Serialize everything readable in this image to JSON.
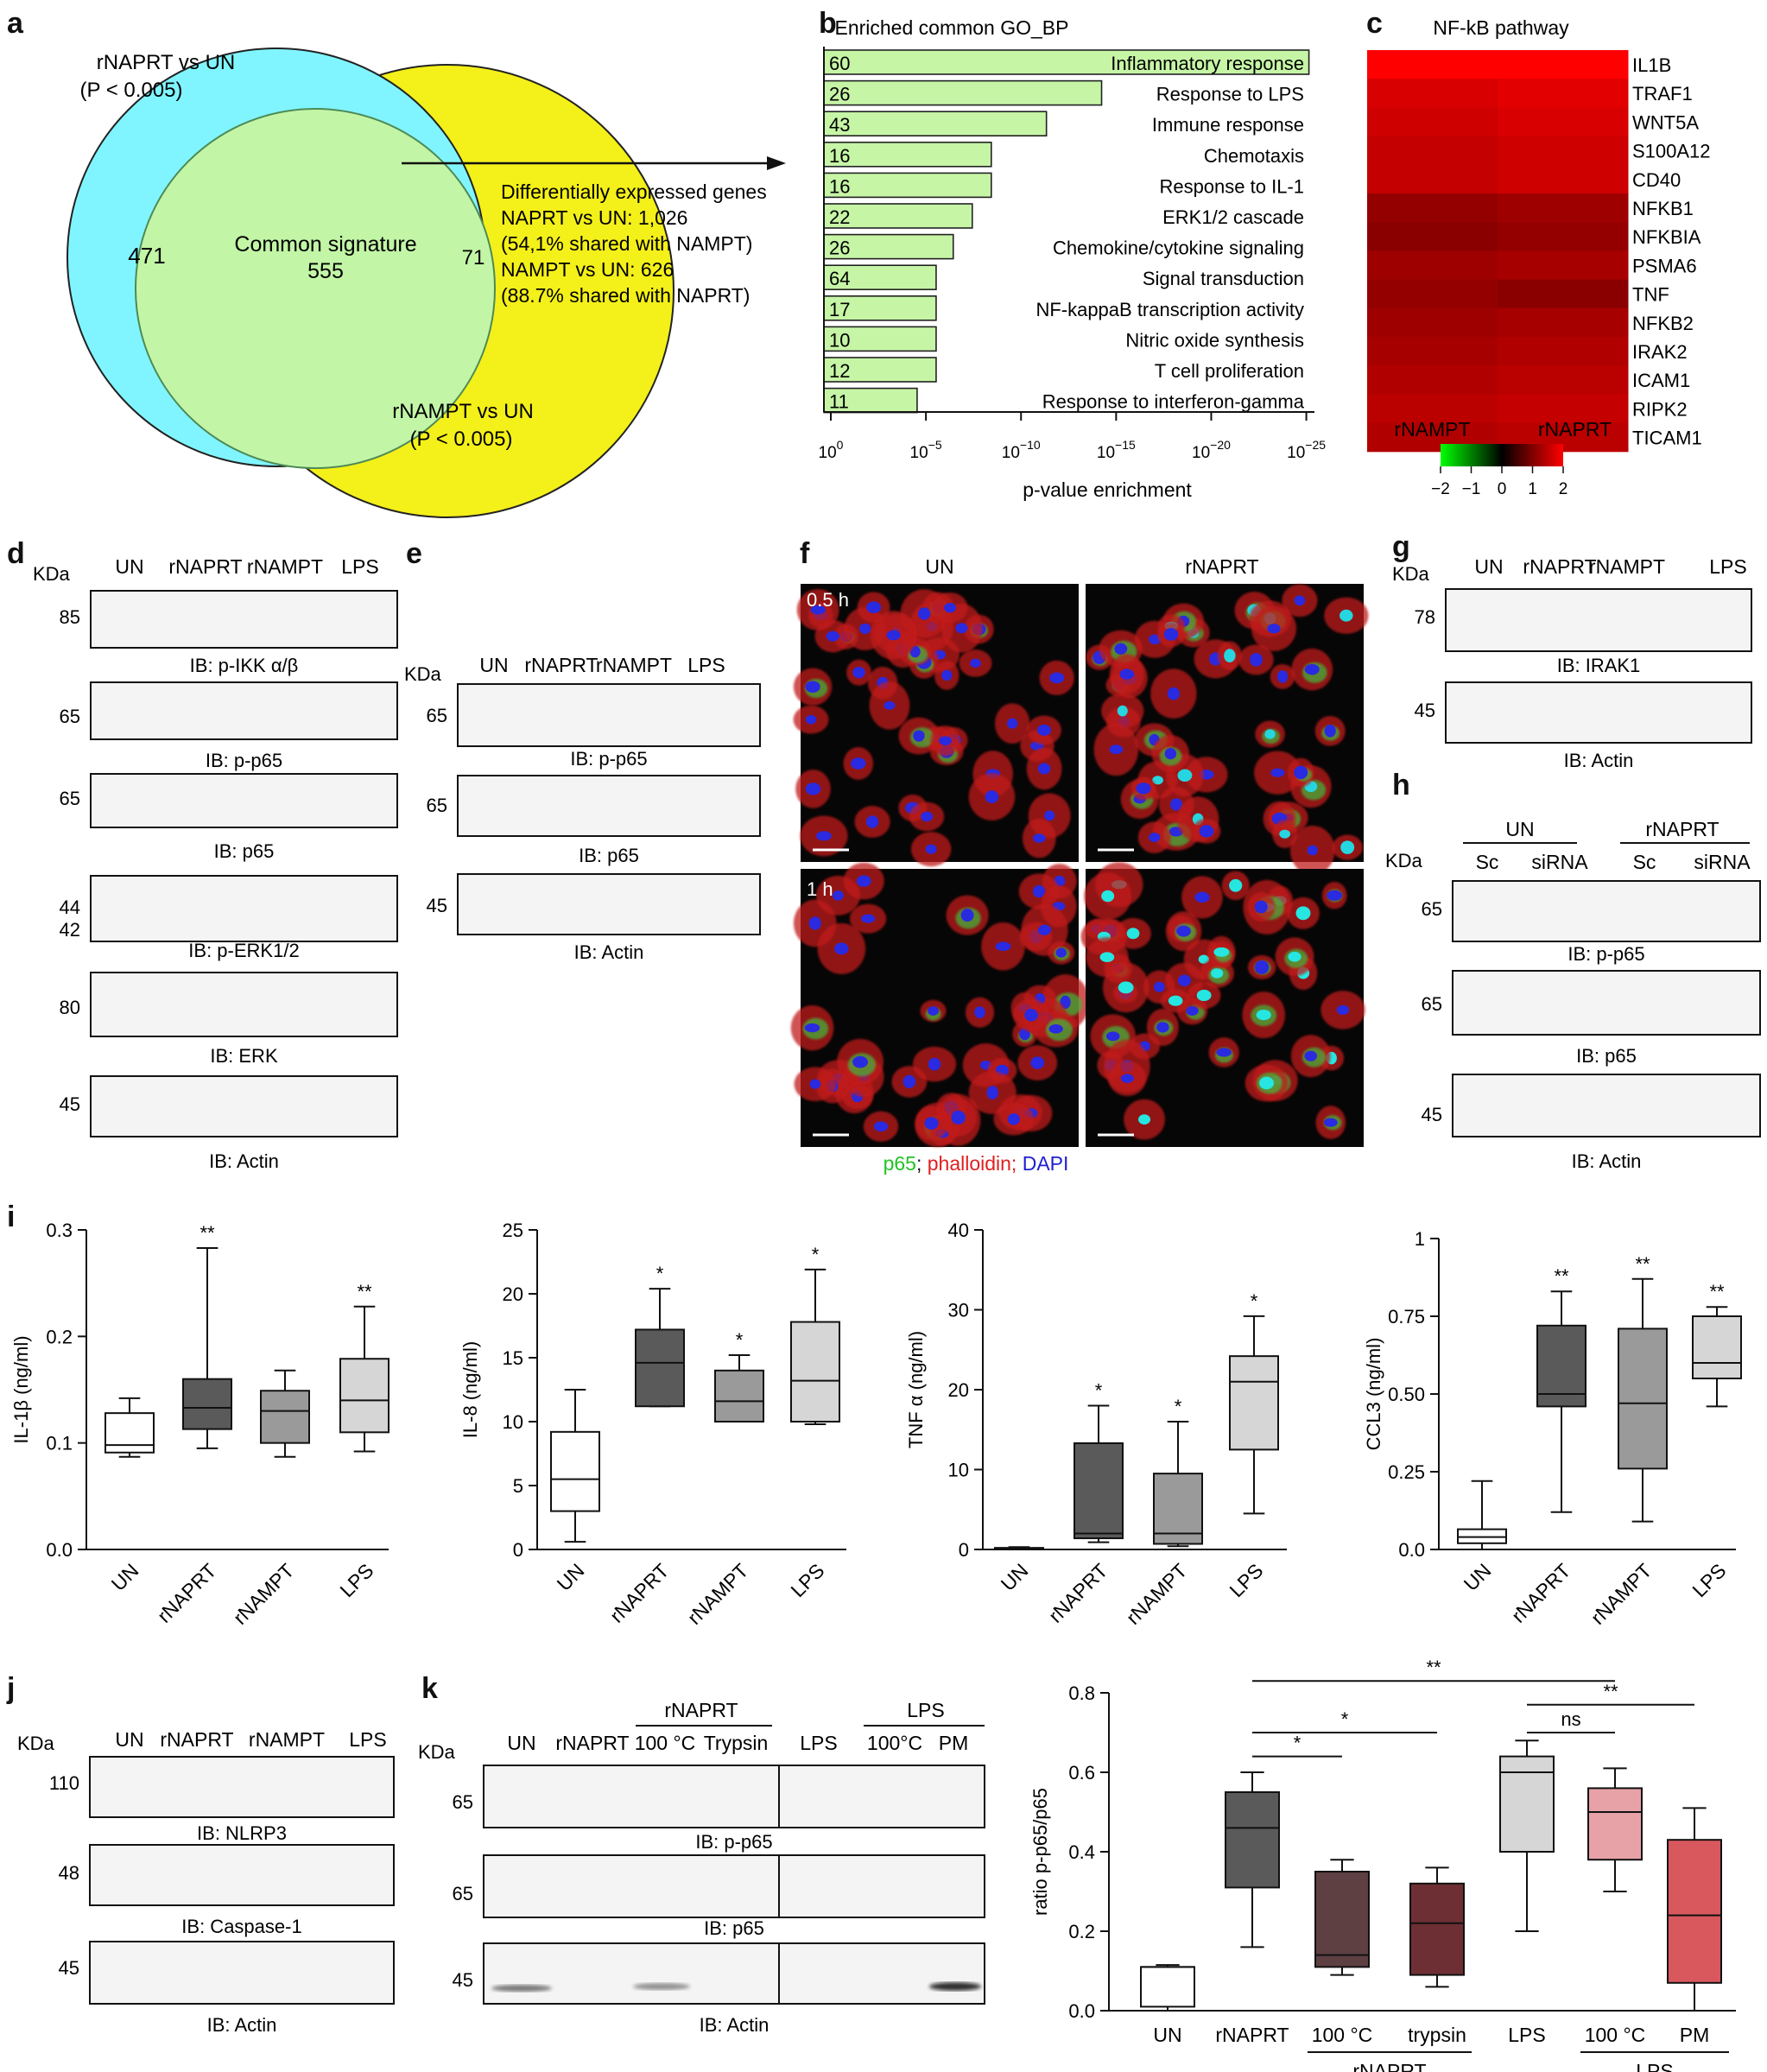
{
  "panel_letters": {
    "a": "a",
    "b": "b",
    "c": "c",
    "d": "d",
    "e": "e",
    "f": "f",
    "g": "g",
    "h": "h",
    "i": "i",
    "j": "j",
    "k": "k"
  },
  "venn": {
    "rnaprt_label": "rNAPRT vs UN",
    "rnaprt_p": "(P < 0.005)",
    "rnampt_label": "rNAMPT vs UN",
    "rnampt_p": "(P < 0.005)",
    "left_only": "471",
    "common_title": "Common signature",
    "common_count": "555",
    "right_only": "71",
    "colors": {
      "rnaprt": "#80f5ff",
      "rnampt": "#f4f019",
      "common": "#c2f5a6"
    },
    "deg_text": [
      "Differentially expressed genes",
      "NAPRT vs UN: 1,026",
      "(54,1% shared with NAMPT)",
      "NAMPT vs UN: 626",
      "(88.7% shared with NAPRT)"
    ]
  },
  "go_chart": {
    "title": "Enriched common GO_BP",
    "xlabel": "p-value enrichment",
    "xticks": [
      "10^0",
      "10^-5",
      "10^-10",
      "10^-15",
      "10^-20",
      "10^-25"
    ],
    "bar_color": "#c6f5a6"
  },
  "heatmap": {
    "title": "NF-kB pathway",
    "columns": [
      "rNAMPT",
      "rNAPRT"
    ],
    "genes": [
      "IL1B",
      "TRAF1",
      "WNT5A",
      "S100A12",
      "CD40",
      "NFKB1",
      "NFKBIA",
      "PSMA6",
      "TNF",
      "NFKB2",
      "IRAK2",
      "ICAM1",
      "RIPK2",
      "TICAM1"
    ],
    "scale_ticks": [
      "−2",
      "−1",
      "0",
      "1",
      "2"
    ]
  },
  "blots": {
    "kda": "KDa",
    "d": {
      "lanes": [
        "UN",
        "rNAPRT",
        "rNAMPT",
        "LPS"
      ],
      "rows": [
        {
          "mw": [
            "85"
          ],
          "label": "IB: p-IKK α/β"
        },
        {
          "mw": [
            "65"
          ],
          "label": "IB: p-p65"
        },
        {
          "mw": [
            "65"
          ],
          "label": "IB: p65"
        },
        {
          "mw": [
            "44",
            "42"
          ],
          "label": "IB: p-ERK1/2"
        },
        {
          "mw": [
            "80"
          ],
          "label": "IB: ERK"
        },
        {
          "mw": [
            "45"
          ],
          "label": "IB: Actin"
        }
      ]
    },
    "e": {
      "lanes": [
        "UN",
        "rNAPRT",
        "rNAMPT",
        "LPS"
      ],
      "rows": [
        {
          "mw": [
            "65"
          ],
          "label": "IB: p-p65"
        },
        {
          "mw": [
            "65"
          ],
          "label": "IB: p65"
        },
        {
          "mw": [
            "45"
          ],
          "label": "IB: Actin"
        }
      ]
    },
    "g": {
      "lanes": [
        "UN",
        "rNAPRT",
        "rNAMPT",
        "LPS"
      ],
      "rows": [
        {
          "mw": [
            "78"
          ],
          "label": "IB: IRAK1"
        },
        {
          "mw": [
            "45"
          ],
          "label": "IB: Actin"
        }
      ]
    },
    "h": {
      "groups": [
        "UN",
        "rNAPRT"
      ],
      "lanes": [
        "Sc",
        "siRNA",
        "Sc",
        "siRNA"
      ],
      "rows": [
        {
          "mw": [
            "65"
          ],
          "label": "IB: p-p65"
        },
        {
          "mw": [
            "65"
          ],
          "label": "IB: p65"
        },
        {
          "mw": [
            "45"
          ],
          "label": "IB: Actin"
        }
      ]
    },
    "j": {
      "lanes": [
        "UN",
        "rNAPRT",
        "rNAMPT",
        "LPS"
      ],
      "rows": [
        {
          "mw": [
            "110"
          ],
          "label": "IB: NLRP3"
        },
        {
          "mw": [
            "48"
          ],
          "label": "IB: Caspase-1"
        },
        {
          "mw": [
            "45"
          ],
          "label": "IB: Actin"
        }
      ]
    },
    "k": {
      "groups": [
        "rNAPRT",
        "LPS"
      ],
      "lanes": [
        "UN",
        "rNAPRT",
        "100 °C",
        "Trypsin",
        "LPS",
        "100°C",
        "PM"
      ],
      "rows": [
        {
          "mw": [
            "65"
          ],
          "label": "IB: p-p65"
        },
        {
          "mw": [
            "65"
          ],
          "label": "IB: p65"
        },
        {
          "mw": [
            "45"
          ],
          "label": "IB: Actin"
        }
      ]
    }
  },
  "micro": {
    "col_labels": [
      "UN",
      "rNAPRT"
    ],
    "time_labels": [
      "0.5 h",
      "1 h"
    ],
    "legend": [
      {
        "text": "p65",
        "color": "#22c322"
      },
      {
        "text": "; ",
        "color": "#111111"
      },
      {
        "text": "phalloidin;",
        "color": "#e02020"
      },
      {
        "text": " DAPI",
        "color": "#2020d0"
      }
    ]
  },
  "box_colors": [
    "#ffffff",
    "#5a5a5a",
    "#9a9a9a",
    "#d6d6d6"
  ],
  "k_colors": [
    "#ffffff",
    "#5a5a5a",
    "#5e3f42",
    "#6e2f34",
    "#d6d6d6",
    "#e7a2a8",
    "#d8585e"
  ],
  "chart_data": [
    {
      "type": "bar",
      "title": "Enriched common GO_BP",
      "xlabel": "p-value enrichment",
      "x_scale": "log",
      "categories": [
        "Inflammatory response",
        "Response to LPS",
        "Immune response",
        "Chemotaxis",
        "Response to IL-1",
        "ERK1/2 cascade",
        "Chemokine/cytokine signaling",
        "Signal transduction",
        "NF-kappaB transcription activity",
        "Nitric oxide synthesis",
        "T cell proliferation",
        "Response to interferon-gamma"
      ],
      "values_exponent": [
        25.5,
        14.6,
        11.7,
        8.8,
        8.8,
        7.8,
        6.8,
        5.9,
        5.9,
        5.9,
        5.9,
        4.9
      ],
      "gene_counts": [
        "60",
        "26",
        "43",
        "16",
        "16",
        "22",
        "26",
        "64",
        "17",
        "10",
        "12",
        "11"
      ]
    },
    {
      "type": "heatmap",
      "title": "NF-kB pathway",
      "columns": [
        "rNAMPT",
        "rNAPRT"
      ],
      "rows": [
        "IL1B",
        "TRAF1",
        "WNT5A",
        "S100A12",
        "CD40",
        "NFKB1",
        "NFKBIA",
        "PSMA6",
        "TNF",
        "NFKB2",
        "IRAK2",
        "ICAM1",
        "RIPK2",
        "TICAM1"
      ],
      "values": [
        [
          2.0,
          2.0
        ],
        [
          1.6,
          1.7
        ],
        [
          1.5,
          1.6
        ],
        [
          1.4,
          1.5
        ],
        [
          1.4,
          1.5
        ],
        [
          0.9,
          1.0
        ],
        [
          0.8,
          0.9
        ],
        [
          1.0,
          1.1
        ],
        [
          0.9,
          0.8
        ],
        [
          1.0,
          1.1
        ],
        [
          1.1,
          1.2
        ],
        [
          1.2,
          1.3
        ],
        [
          1.3,
          1.4
        ],
        [
          1.2,
          1.3
        ]
      ],
      "scale": [
        -2,
        2
      ]
    },
    {
      "type": "box",
      "ylabel": "IL-1β (ng/ml)",
      "ylim": [
        0,
        0.3
      ],
      "yticks": [
        "0.0",
        "0.1",
        "0.2",
        "0.3"
      ],
      "categories": [
        "UN",
        "rNAPRT",
        "rNAMPT",
        "LPS"
      ],
      "boxes": [
        {
          "min": 0.087,
          "q1": 0.091,
          "med": 0.098,
          "q3": 0.128,
          "max": 0.142,
          "sig": ""
        },
        {
          "min": 0.095,
          "q1": 0.113,
          "med": 0.133,
          "q3": 0.16,
          "max": 0.283,
          "sig": "**"
        },
        {
          "min": 0.087,
          "q1": 0.1,
          "med": 0.13,
          "q3": 0.149,
          "max": 0.168,
          "sig": ""
        },
        {
          "min": 0.092,
          "q1": 0.11,
          "med": 0.14,
          "q3": 0.179,
          "max": 0.228,
          "sig": "**"
        }
      ]
    },
    {
      "type": "box",
      "ylabel": "IL-8 (ng/ml)",
      "ylim": [
        0,
        25
      ],
      "yticks": [
        "0",
        "5",
        "10",
        "15",
        "20",
        "25"
      ],
      "categories": [
        "UN",
        "rNAPRT",
        "rNAMPT",
        "LPS"
      ],
      "boxes": [
        {
          "min": 0.6,
          "q1": 3.0,
          "med": 5.5,
          "q3": 9.2,
          "max": 12.5,
          "sig": ""
        },
        {
          "min": 11.2,
          "q1": 11.2,
          "med": 14.6,
          "q3": 17.2,
          "max": 20.4,
          "sig": "*"
        },
        {
          "min": 10.0,
          "q1": 10.0,
          "med": 11.6,
          "q3": 14.0,
          "max": 15.2,
          "sig": "*"
        },
        {
          "min": 9.8,
          "q1": 10.0,
          "med": 13.2,
          "q3": 17.8,
          "max": 21.9,
          "sig": "*"
        }
      ]
    },
    {
      "type": "box",
      "ylabel": "TNF α (ng/ml)",
      "ylim": [
        0,
        40
      ],
      "yticks": [
        "0",
        "10",
        "20",
        "30",
        "40"
      ],
      "categories": [
        "UN",
        "rNAPRT",
        "rNAMPT",
        "LPS"
      ],
      "boxes": [
        {
          "min": 0.0,
          "q1": 0.05,
          "med": 0.1,
          "q3": 0.2,
          "max": 0.3,
          "sig": ""
        },
        {
          "min": 0.9,
          "q1": 1.4,
          "med": 2.0,
          "q3": 13.3,
          "max": 18.0,
          "sig": "*"
        },
        {
          "min": 0.4,
          "q1": 0.7,
          "med": 2.0,
          "q3": 9.5,
          "max": 16.0,
          "sig": "*"
        },
        {
          "min": 4.5,
          "q1": 12.5,
          "med": 21.0,
          "q3": 24.2,
          "max": 29.2,
          "sig": "*"
        }
      ]
    },
    {
      "type": "box",
      "ylabel": "CCL3 (ng/ml)",
      "ylim": [
        0,
        1
      ],
      "yticks": [
        "0.0",
        "0.25",
        "0.50",
        "0.75",
        "1"
      ],
      "categories": [
        "UN",
        "rNAPRT",
        "rNAMPT",
        "LPS"
      ],
      "boxes": [
        {
          "min": 0.0,
          "q1": 0.02,
          "med": 0.04,
          "q3": 0.065,
          "max": 0.22,
          "sig": ""
        },
        {
          "min": 0.12,
          "q1": 0.46,
          "med": 0.5,
          "q3": 0.72,
          "max": 0.83,
          "sig": "**"
        },
        {
          "min": 0.09,
          "q1": 0.26,
          "med": 0.47,
          "q3": 0.71,
          "max": 0.87,
          "sig": "**"
        },
        {
          "min": 0.46,
          "q1": 0.55,
          "med": 0.6,
          "q3": 0.75,
          "max": 0.78,
          "sig": "**"
        }
      ]
    },
    {
      "type": "box",
      "ylabel": "ratio p-p65/p65",
      "ylim": [
        0,
        0.8
      ],
      "yticks": [
        "0.0",
        "0.2",
        "0.4",
        "0.6",
        "0.8"
      ],
      "categories": [
        "UN",
        "rNAPRT",
        "100 °C",
        "trypsin",
        "LPS",
        "100 °C",
        "PM"
      ],
      "group_labels": [
        {
          "text": "rNAPRT",
          "from": 2,
          "to": 3
        },
        {
          "text": "LPS",
          "from": 5,
          "to": 6
        }
      ],
      "boxes": [
        {
          "min": 0.0,
          "q1": 0.01,
          "med": 0.11,
          "q3": 0.11,
          "max": 0.115
        },
        {
          "min": 0.16,
          "q1": 0.31,
          "med": 0.46,
          "q3": 0.55,
          "max": 0.6
        },
        {
          "min": 0.09,
          "q1": 0.11,
          "med": 0.14,
          "q3": 0.35,
          "max": 0.38
        },
        {
          "min": 0.06,
          "q1": 0.09,
          "med": 0.22,
          "q3": 0.32,
          "max": 0.36
        },
        {
          "min": 0.2,
          "q1": 0.4,
          "med": 0.6,
          "q3": 0.64,
          "max": 0.68
        },
        {
          "min": 0.3,
          "q1": 0.38,
          "med": 0.5,
          "q3": 0.56,
          "max": 0.61
        },
        {
          "min": 0.0,
          "q1": 0.07,
          "med": 0.24,
          "q3": 0.43,
          "max": 0.51
        }
      ],
      "brackets": [
        {
          "from": 1,
          "to": 2,
          "text": "*",
          "y": 0.64
        },
        {
          "from": 1,
          "to": 3,
          "text": "*",
          "y": 0.7
        },
        {
          "from": 4,
          "to": 5,
          "text": "ns",
          "y": 0.7
        },
        {
          "from": 4,
          "to": 6,
          "text": "**",
          "y": 0.77
        },
        {
          "from": 1,
          "to": 5,
          "text": "**",
          "y": 0.83
        }
      ]
    }
  ]
}
